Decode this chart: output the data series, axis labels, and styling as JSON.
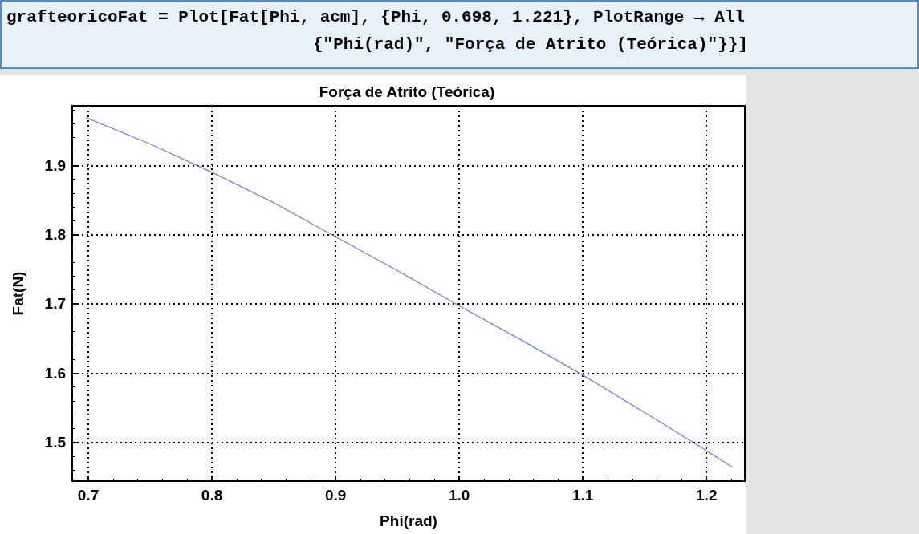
{
  "chart_data": {
    "type": "line",
    "title": "Força de Atrito (Teórica)",
    "xlabel": "Phi(rad)",
    "ylabel": "Fat(N)",
    "annotations": [
      "grafteoricoFat = Plot[Fat[Phi, acm], {Phi, 0.698, 1.221}, PlotRange → All",
      "{\"Phi(rad)\", \"Força de Atrito (Teórica)\"}}]"
    ],
    "x": [
      0.698,
      0.75,
      0.8,
      0.85,
      0.9,
      0.95,
      1.0,
      1.05,
      1.1,
      1.15,
      1.2,
      1.221
    ],
    "series": [
      {
        "color": "#7f7fc8",
        "values": [
          1.969,
          1.931,
          1.89,
          1.846,
          1.797,
          1.748,
          1.697,
          1.648,
          1.597,
          1.543,
          1.488,
          1.464
        ]
      }
    ],
    "xlim": [
      0.687,
      1.231
    ],
    "xticks": [
      {
        "value": 0.7,
        "label": "0.7"
      },
      {
        "value": 0.8,
        "label": "0.8"
      },
      {
        "value": 0.9,
        "label": "0.9"
      },
      {
        "value": 1.0,
        "label": "1.0"
      },
      {
        "value": 1.1,
        "label": "1.1"
      },
      {
        "value": 1.2,
        "label": "1.2"
      }
    ],
    "ylim": [
      1.444,
      1.986
    ],
    "yticks": [
      1.5,
      1.6,
      1.7,
      1.8,
      1.9
    ],
    "grid": true,
    "marker": "none",
    "line_style": "solid"
  }
}
